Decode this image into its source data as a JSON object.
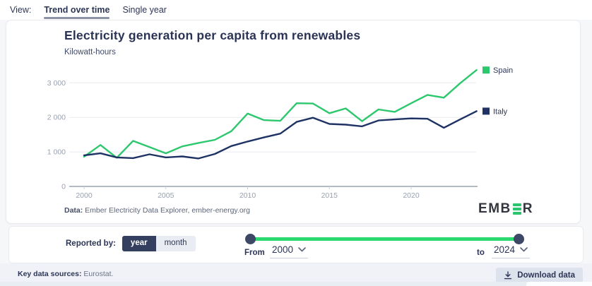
{
  "view_bar": {
    "label": "View:",
    "tabs": [
      {
        "label": "Trend over time",
        "active": true
      },
      {
        "label": "Single year",
        "active": false
      }
    ]
  },
  "chart": {
    "title": "Electricity generation per capita from renewables",
    "subtitle": "Kilowatt-hours",
    "source_prefix": "Data:",
    "source_text": " Ember Electricity Data Explorer, ember-energy.org",
    "logo_part1": "EMB",
    "logo_part2": "R"
  },
  "chart_data": {
    "type": "line",
    "title": "Electricity generation per capita from renewables",
    "ylabel": "Kilowatt-hours",
    "xlabel": "",
    "grid": true,
    "legend_position": "right",
    "ylim": [
      0,
      3500
    ],
    "x": [
      2000,
      2001,
      2002,
      2003,
      2004,
      2005,
      2006,
      2007,
      2008,
      2009,
      2010,
      2011,
      2012,
      2013,
      2014,
      2015,
      2016,
      2017,
      2018,
      2019,
      2020,
      2021,
      2022,
      2023,
      2024
    ],
    "x_ticks": [
      2000,
      2005,
      2010,
      2015,
      2020
    ],
    "y_ticks": [
      0,
      1000,
      2000,
      3000
    ],
    "y_tick_labels": [
      "0",
      "1 000",
      "2 000",
      "3 000"
    ],
    "series": [
      {
        "name": "Spain",
        "color": "#2dc76d",
        "values": [
          860,
          1200,
          830,
          1320,
          1140,
          960,
          1160,
          1260,
          1350,
          1600,
          2110,
          1920,
          1900,
          2410,
          2400,
          2120,
          2260,
          1890,
          2230,
          2160,
          2410,
          2650,
          2570,
          2990,
          3370
        ]
      },
      {
        "name": "Italy",
        "color": "#1e3263",
        "values": [
          900,
          960,
          840,
          820,
          930,
          840,
          870,
          810,
          940,
          1170,
          1300,
          1420,
          1530,
          1870,
          1990,
          1810,
          1790,
          1740,
          1910,
          1940,
          1970,
          1960,
          1700,
          1940,
          2180
        ]
      }
    ]
  },
  "controls": {
    "reported_by_label": "Reported by:",
    "toggle": [
      {
        "label": "year",
        "active": true
      },
      {
        "label": "month",
        "active": false
      }
    ],
    "from_label": "From",
    "from_value": "2000",
    "to_label": "to",
    "to_value": "2024"
  },
  "footer": {
    "sources_label": "Key data sources:",
    "sources_value": " Eurostat.",
    "download_label": "Download data"
  },
  "colors": {
    "spain_green": "#2dc76d",
    "italy_navy": "#1e3263",
    "slider_green": "#2bd96e",
    "logo_green": "#2bc46f"
  }
}
